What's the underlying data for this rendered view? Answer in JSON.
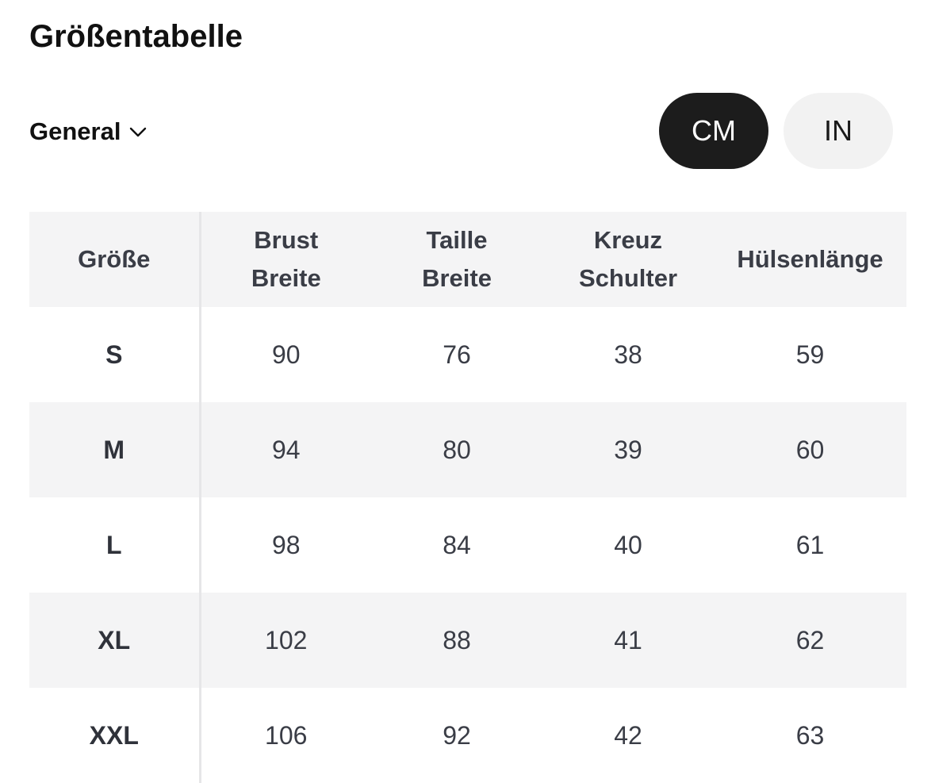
{
  "title": "Größentabelle",
  "region": {
    "label": "General",
    "icon": "chevron-down-icon"
  },
  "units": {
    "options": [
      "CM",
      "IN"
    ],
    "selected": "CM"
  },
  "colors": {
    "active_bg": "#1c1c1c",
    "inactive_bg": "#f2f2f2",
    "stripe": "#f4f4f5",
    "text": "#3a3d46"
  },
  "table": {
    "headers": [
      {
        "line1": "Größe",
        "line2": ""
      },
      {
        "line1": "Brust",
        "line2": "Breite"
      },
      {
        "line1": "Taille",
        "line2": "Breite"
      },
      {
        "line1": "Kreuz",
        "line2": "Schulter"
      },
      {
        "line1": "Hülsenlänge",
        "line2": ""
      }
    ],
    "rows": [
      {
        "size": "S",
        "values": [
          "90",
          "76",
          "38",
          "59"
        ]
      },
      {
        "size": "M",
        "values": [
          "94",
          "80",
          "39",
          "60"
        ]
      },
      {
        "size": "L",
        "values": [
          "98",
          "84",
          "40",
          "61"
        ]
      },
      {
        "size": "XL",
        "values": [
          "102",
          "88",
          "41",
          "62"
        ]
      },
      {
        "size": "XXL",
        "values": [
          "106",
          "92",
          "42",
          "63"
        ]
      }
    ]
  }
}
